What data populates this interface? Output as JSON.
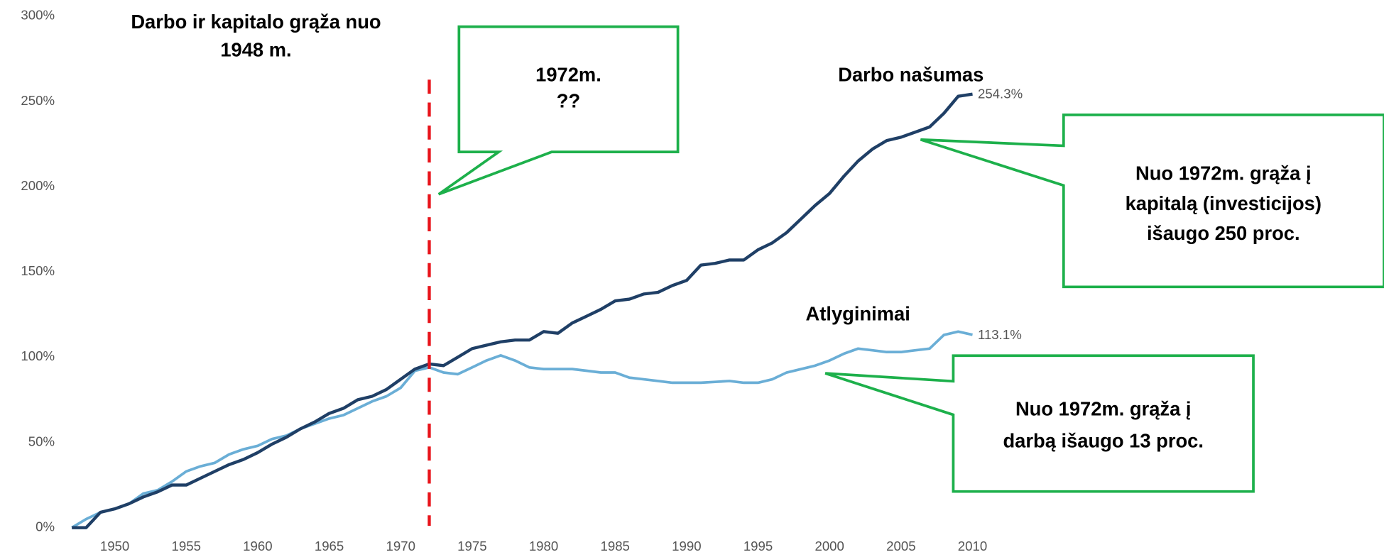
{
  "chart_data": {
    "type": "line",
    "title": [
      "Darbo ir kapitalo grąža nuo",
      "1948 m."
    ],
    "x": [
      1947,
      1948,
      1949,
      1950,
      1951,
      1952,
      1953,
      1954,
      1955,
      1956,
      1957,
      1958,
      1959,
      1960,
      1961,
      1962,
      1963,
      1964,
      1965,
      1966,
      1967,
      1968,
      1969,
      1970,
      1971,
      1972,
      1973,
      1974,
      1975,
      1976,
      1977,
      1978,
      1979,
      1980,
      1981,
      1982,
      1983,
      1984,
      1985,
      1986,
      1987,
      1988,
      1989,
      1990,
      1991,
      1992,
      1993,
      1994,
      1995,
      1996,
      1997,
      1998,
      1999,
      2000,
      2001,
      2002,
      2003,
      2004,
      2005,
      2006,
      2007,
      2008,
      2009,
      2010
    ],
    "series": [
      {
        "name": "Darbo našumas",
        "color": "#1f3f66",
        "end_label": "254.3%",
        "values": [
          0,
          0,
          9,
          11,
          14,
          18,
          21,
          25,
          25,
          29,
          33,
          37,
          40,
          44,
          49,
          53,
          58,
          62,
          67,
          70,
          75,
          77,
          81,
          87,
          93,
          96,
          95,
          100,
          105,
          107,
          109,
          110,
          110,
          115,
          114,
          120,
          124,
          128,
          133,
          134,
          137,
          138,
          142,
          145,
          154,
          155,
          157,
          157,
          163,
          167,
          173,
          181,
          189,
          196,
          206,
          215,
          222,
          227,
          229,
          232,
          235,
          243,
          253,
          254.3
        ]
      },
      {
        "name": "Atlyginimai",
        "color": "#6aaed6",
        "end_label": "113.1%",
        "values": [
          0,
          5,
          9,
          11,
          14,
          20,
          22,
          27,
          33,
          36,
          38,
          43,
          46,
          48,
          52,
          54,
          58,
          61,
          64,
          66,
          70,
          74,
          77,
          82,
          92,
          94,
          91,
          90,
          94,
          98,
          101,
          98,
          94,
          93,
          93,
          93,
          92,
          91,
          91,
          88,
          87,
          86,
          85,
          85,
          85,
          85.5,
          86,
          85,
          85,
          87,
          91,
          93,
          95,
          98,
          102,
          105,
          104,
          103,
          103,
          104,
          105,
          113,
          115,
          113.1
        ]
      }
    ],
    "xlim": [
      1947,
      2011
    ],
    "xticks": [
      1950,
      1955,
      1960,
      1965,
      1970,
      1975,
      1980,
      1985,
      1990,
      1995,
      2000,
      2005,
      2010
    ],
    "ylim": [
      0,
      300
    ],
    "yticks": [
      {
        "value": 0,
        "label": "0%"
      },
      {
        "value": 50,
        "label": "50%"
      },
      {
        "value": 100,
        "label": "100%"
      },
      {
        "value": 150,
        "label": "150%"
      },
      {
        "value": 200,
        "label": "200%"
      },
      {
        "value": 250,
        "label": "250%"
      },
      {
        "value": 300,
        "label": "300%"
      }
    ],
    "marker_line_x": 1972,
    "callouts": [
      {
        "lines": [
          "1972m.",
          "??"
        ]
      },
      {
        "lines": [
          "Nuo 1972m. grąža į",
          "kapitalą (investicijos)",
          "išaugo 250 proc."
        ]
      },
      {
        "lines": [
          "Nuo 1972m. grąža į",
          "darbą išaugo 13 proc."
        ]
      }
    ]
  }
}
